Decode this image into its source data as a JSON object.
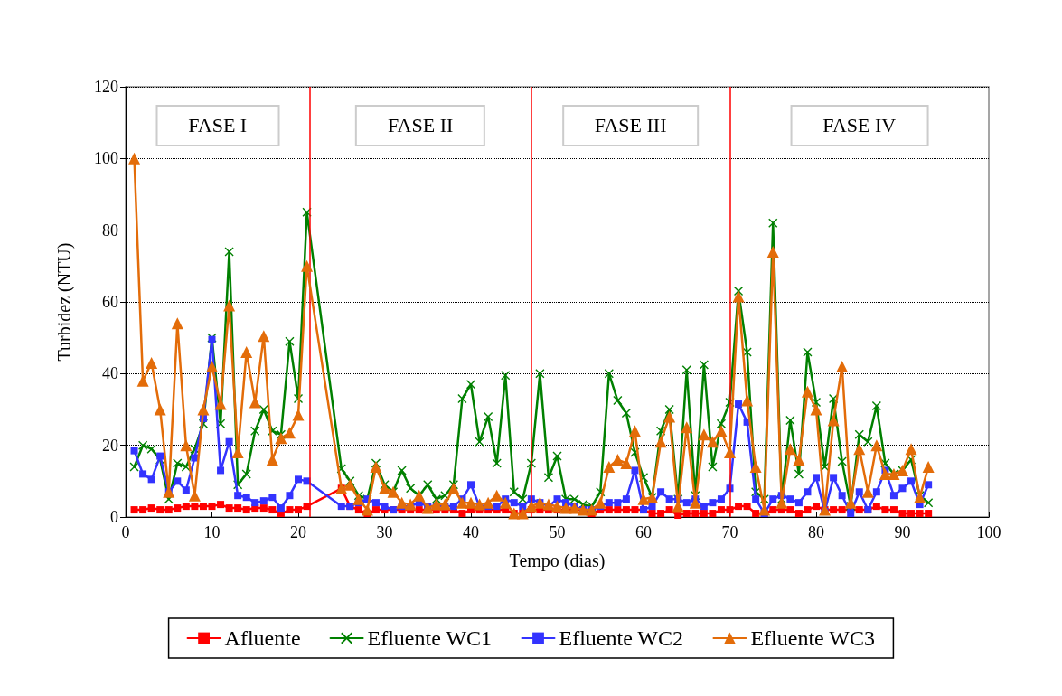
{
  "chart_data": {
    "type": "line",
    "xlabel": "Tempo (dias)",
    "ylabel": "Turbidez (NTU)",
    "x": [
      1,
      2,
      3,
      4,
      5,
      6,
      7,
      8,
      9,
      10,
      11,
      12,
      13,
      14,
      15,
      16,
      17,
      18,
      19,
      20,
      21,
      25,
      26,
      27,
      28,
      29,
      30,
      31,
      32,
      33,
      34,
      35,
      36,
      37,
      38,
      39,
      40,
      41,
      42,
      43,
      44,
      45,
      46,
      47,
      48,
      49,
      50,
      51,
      52,
      53,
      54,
      55,
      56,
      57,
      58,
      59,
      60,
      61,
      62,
      63,
      64,
      65,
      66,
      67,
      68,
      69,
      70,
      71,
      72,
      73,
      74,
      75,
      76,
      77,
      78,
      79,
      80,
      81,
      82,
      83,
      84,
      85,
      86,
      87,
      88,
      89,
      90,
      91,
      92,
      93
    ],
    "series": [
      {
        "name": "Afluente",
        "color": "#ff0000",
        "marker": "square",
        "values": [
          2,
          2,
          2.5,
          2,
          2,
          2.5,
          3,
          3,
          3,
          3,
          3.5,
          2.5,
          2.5,
          2,
          2.5,
          2.5,
          2,
          1,
          2,
          2,
          3,
          8,
          3,
          2,
          1,
          2,
          2,
          2,
          2,
          2,
          2,
          2,
          2,
          2,
          2,
          1,
          2,
          2,
          2,
          2,
          2,
          1,
          1,
          2,
          2,
          2,
          2,
          2,
          2,
          2,
          1,
          2,
          2,
          2,
          2,
          2,
          2,
          1,
          1,
          2,
          0.5,
          1,
          1,
          1,
          1,
          2,
          2,
          3,
          3,
          1,
          1,
          2,
          2,
          2,
          1,
          2,
          3,
          2,
          2,
          2,
          2,
          2,
          2,
          3,
          2,
          2,
          1,
          1,
          1,
          1
        ]
      },
      {
        "name": "Efluente WC1",
        "color": "#008000",
        "marker": "cross",
        "values": [
          14,
          20,
          19,
          16,
          5,
          15,
          14,
          19,
          26,
          50,
          26,
          74,
          9,
          12,
          24,
          30,
          24,
          23,
          49,
          33,
          85,
          13.5,
          10,
          6,
          5,
          15,
          9,
          7,
          13,
          8,
          6,
          9,
          5,
          6,
          9,
          33,
          37,
          21,
          28,
          15,
          39.5,
          7,
          5,
          15,
          40,
          11,
          17,
          5,
          5,
          3.5,
          3,
          7,
          40,
          32.5,
          29,
          18,
          11,
          5.5,
          24,
          30,
          5,
          41,
          6,
          42.5,
          14,
          26,
          32,
          63,
          46,
          7,
          5,
          82,
          5,
          27,
          12,
          46,
          32,
          14,
          33,
          15.5,
          3,
          23,
          21,
          31,
          15,
          12,
          13,
          16,
          6,
          4
        ]
      },
      {
        "name": "Efluente WC2",
        "color": "#3333ff",
        "marker": "square",
        "values": [
          18.5,
          12,
          10.5,
          17,
          7,
          10,
          7.5,
          16.5,
          27.5,
          49.5,
          13,
          21,
          6,
          5.5,
          4,
          4.5,
          5.5,
          2.5,
          6,
          10.5,
          10,
          3,
          3,
          4,
          5,
          4,
          3,
          2,
          3,
          3,
          4,
          3,
          3,
          3,
          3,
          5,
          9,
          3,
          3,
          3,
          5,
          4,
          3,
          5,
          4,
          3,
          5,
          4,
          3,
          2,
          2,
          3,
          4,
          4,
          5,
          13,
          2,
          3,
          7,
          5,
          5,
          4,
          5,
          3,
          4,
          5,
          8,
          31.5,
          26.5,
          5,
          1,
          5,
          6,
          5,
          4,
          7,
          11,
          1.5,
          11,
          6,
          1,
          7,
          2,
          7,
          13,
          6,
          8,
          10,
          3.5,
          9
        ]
      },
      {
        "name": "Efluente WC3",
        "color": "#e36c09",
        "marker": "triangle",
        "values": [
          100,
          38,
          43,
          30,
          7,
          54,
          20,
          6,
          30,
          42,
          31.5,
          59,
          18,
          46,
          32,
          50.5,
          16,
          22,
          23.5,
          28.5,
          70,
          8,
          9,
          5,
          2,
          14,
          8,
          7,
          4,
          3.5,
          6,
          2.5,
          3.5,
          3.5,
          8,
          4,
          4,
          3.5,
          4,
          6,
          4,
          1,
          1,
          3,
          4,
          3.5,
          3,
          2.5,
          2.5,
          2,
          2,
          4,
          14,
          16,
          15,
          24,
          5,
          5.5,
          21,
          28,
          3,
          25,
          4,
          23,
          21,
          24,
          18,
          61.5,
          32.5,
          14,
          2,
          74,
          4,
          19,
          16,
          35,
          30,
          2,
          27,
          42,
          4,
          19,
          7,
          20,
          12,
          12,
          13,
          19,
          5.5,
          14
        ]
      }
    ],
    "xlim": [
      0,
      100
    ],
    "xticks": [
      0,
      10,
      20,
      30,
      40,
      50,
      60,
      70,
      80,
      90,
      100
    ],
    "ylim": [
      0,
      120
    ],
    "yticks": [
      0,
      20,
      40,
      60,
      80,
      100,
      120
    ],
    "grid": "y",
    "legend": "bottom",
    "line_style": "solid",
    "ref_lines": [
      {
        "axis": "x",
        "value": 21.3,
        "color": "#ff0000"
      },
      {
        "axis": "x",
        "value": 47,
        "color": "#ff0000"
      },
      {
        "axis": "x",
        "value": 70,
        "color": "#ff0000"
      }
    ],
    "annotations": [
      "FASE I",
      "FASE II",
      "FASE III",
      "FASE IV"
    ]
  }
}
